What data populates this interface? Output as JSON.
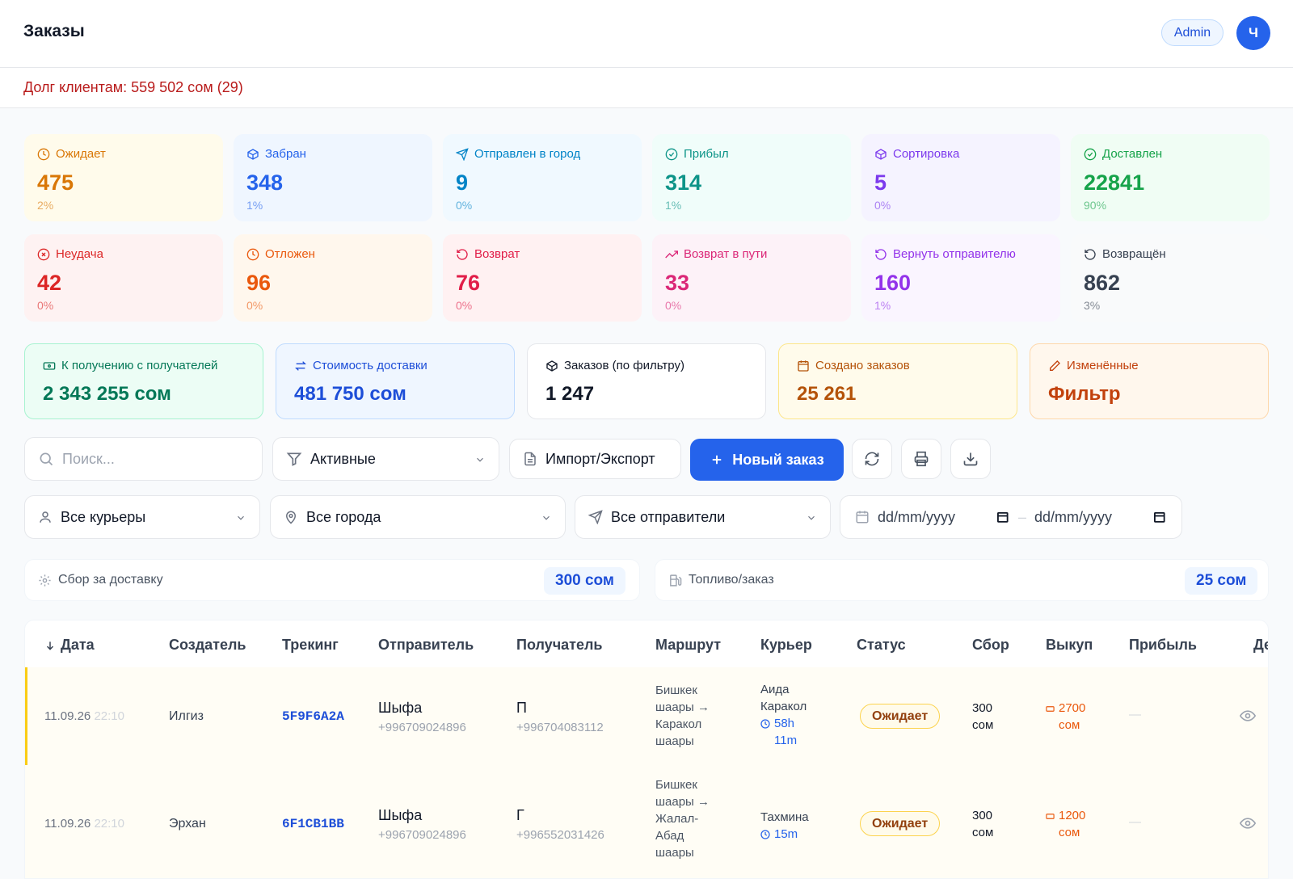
{
  "header": {
    "title": "Заказы",
    "role": "Admin",
    "avatar_initial": "Ч"
  },
  "debt": {
    "text": "Долг клиентам: 559 502 сом (29)"
  },
  "stats": [
    {
      "label": "Ожидает",
      "value": "475",
      "percent": "2%",
      "icon": "clock-icon",
      "color": "#d97706",
      "bg": "#fffbeb"
    },
    {
      "label": "Забран",
      "value": "348",
      "percent": "1%",
      "icon": "box-icon",
      "color": "#2563eb",
      "bg": "#eff6ff"
    },
    {
      "label": "Отправлен в город",
      "value": "9",
      "percent": "0%",
      "icon": "send-icon",
      "color": "#0284c7",
      "bg": "#f0f9ff"
    },
    {
      "label": "Прибыл",
      "value": "314",
      "percent": "1%",
      "icon": "check-circle-icon",
      "color": "#0d9488",
      "bg": "#f0fdfa"
    },
    {
      "label": "Сортировка",
      "value": "5",
      "percent": "0%",
      "icon": "box-icon",
      "color": "#7c3aed",
      "bg": "#f5f3ff"
    },
    {
      "label": "Доставлен",
      "value": "22841",
      "percent": "90%",
      "icon": "check-circle-icon",
      "color": "#16a34a",
      "bg": "#f0fdf4"
    },
    {
      "label": "Неудача",
      "value": "42",
      "percent": "0%",
      "icon": "x-circle-icon",
      "color": "#dc2626",
      "bg": "#fef2f2"
    },
    {
      "label": "Отложен",
      "value": "96",
      "percent": "0%",
      "icon": "clock-icon",
      "color": "#ea580c",
      "bg": "#fff7ed"
    },
    {
      "label": "Возврат",
      "value": "76",
      "percent": "0%",
      "icon": "rotate-ccw-icon",
      "color": "#e11d48",
      "bg": "#fff1f2"
    },
    {
      "label": "Возврат в пути",
      "value": "33",
      "percent": "0%",
      "icon": "trending-up-icon",
      "color": "#db2777",
      "bg": "#fdf2f8"
    },
    {
      "label": "Вернуть отправителю",
      "value": "160",
      "percent": "1%",
      "icon": "rotate-ccw-icon",
      "color": "#9333ea",
      "bg": "#faf5ff"
    },
    {
      "label": "Возвращён",
      "value": "862",
      "percent": "3%",
      "icon": "rotate-ccw-icon",
      "color": "#374151",
      "bg": "#f9fafb"
    }
  ],
  "summary": [
    {
      "label": "К получению с получателей",
      "value": "2 343 255 сом",
      "icon": "banknote-icon",
      "color": "#047857",
      "bg": "#ecfdf5",
      "border": "#a7f3d0"
    },
    {
      "label": "Стоимость доставки",
      "value": "481 750 сом",
      "icon": "arrows-icon",
      "color": "#1d4ed8",
      "bg": "#eff6ff",
      "border": "#bfdbfe"
    },
    {
      "label": "Заказов (по фильтру)",
      "value": "1 247",
      "icon": "box-icon",
      "color": "#111827",
      "bg": "#ffffff",
      "border": "#e5e7eb"
    },
    {
      "label": "Создано заказов",
      "value": "25 261",
      "icon": "calendar-icon",
      "color": "#b45309",
      "bg": "#fffbeb",
      "border": "#fde68a"
    },
    {
      "label": "Изменённые",
      "value": "Фильтр",
      "icon": "pencil-icon",
      "color": "#c2410c",
      "bg": "#fff7ed",
      "border": "#fed7aa"
    }
  ],
  "toolbar": {
    "search_placeholder": "Поиск...",
    "filter_value": "Активные",
    "import_export": "Импорт/Экспорт",
    "new_order": "Новый заказ"
  },
  "filters": {
    "courier": "Все курьеры",
    "city": "Все города",
    "sender": "Все отправители",
    "date_from_placeholder": "dd/mm/yyyy",
    "date_to_placeholder": "dd/mm/yyyy",
    "date_sep": "–"
  },
  "rates": {
    "delivery_label": "Сбор за доставку",
    "delivery_value": "300 сом",
    "fuel_label": "Топливо/заказ",
    "fuel_value": "25 сом"
  },
  "table": {
    "columns": [
      "Дата",
      "Создатель",
      "Трекинг",
      "Отправитель",
      "Получатель",
      "Маршрут",
      "Курьер",
      "Статус",
      "Сбор",
      "Выкуп",
      "Прибыль",
      "Де"
    ],
    "rows": [
      {
        "date": "11.09.26",
        "time": "22:10",
        "creator": "Илгиз",
        "tracking": "5F9F6A2A",
        "sender_name": "Шыфа",
        "sender_phone": "+996709024896",
        "recipient_name": "П",
        "recipient_phone": "+996704083112",
        "route": [
          "Бишкек",
          "шаары →",
          "Каракол",
          "шаары"
        ],
        "courier": [
          "Аида",
          "Каракол"
        ],
        "eta": [
          "58h",
          "11m"
        ],
        "status": "Ожидает",
        "fee": [
          "300",
          "сом"
        ],
        "buyout": [
          "2700",
          "сом"
        ],
        "profit": "—"
      },
      {
        "date": "11.09.26",
        "time": "22:10",
        "creator": "Эрхан",
        "tracking": "6F1CB1BB",
        "sender_name": "Шыфа",
        "sender_phone": "+996709024896",
        "recipient_name": "Г",
        "recipient_phone": "+996552031426",
        "route": [
          "Бишкек",
          "шаары →",
          "Жалал-",
          "Абад",
          "шаары"
        ],
        "courier": [
          "Тахмина"
        ],
        "eta": [
          "15m"
        ],
        "status": "Ожидает",
        "fee": [
          "300",
          "сом"
        ],
        "buyout": [
          "1200",
          "сом"
        ],
        "profit": "—"
      }
    ]
  }
}
